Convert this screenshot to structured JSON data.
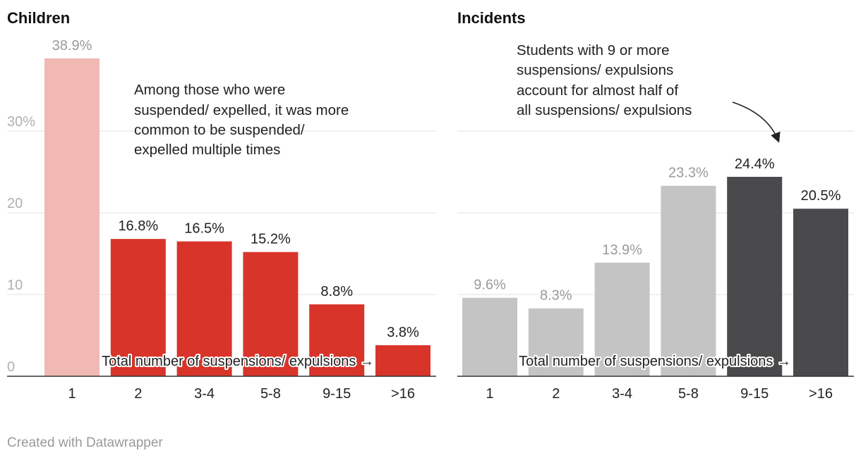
{
  "chart_data": [
    {
      "type": "bar",
      "title": "Children",
      "categories": [
        "1",
        "2",
        "3-4",
        "5-8",
        "9-15",
        ">16"
      ],
      "values": [
        38.9,
        16.8,
        16.5,
        15.2,
        8.8,
        3.8
      ],
      "value_labels": [
        "38.9%",
        "16.8%",
        "16.5%",
        "15.2%",
        "8.8%",
        "3.8%"
      ],
      "colors": [
        "#f1b9b4",
        "#d9342a",
        "#d9342a",
        "#d9342a",
        "#d9342a",
        "#d9342a"
      ],
      "label_colors": [
        "#9a9a9a",
        "#222222",
        "#222222",
        "#222222",
        "#222222",
        "#222222"
      ],
      "ylim": [
        0,
        40
      ],
      "yticks": [
        0,
        10,
        20,
        30
      ],
      "ytick_labels": [
        "0",
        "10",
        "20",
        "30%"
      ],
      "grid": true,
      "xlabel": "Total number of suspensions/ expulsions →",
      "annotation": [
        "Among those who were",
        "suspended/ expelled, it was more",
        "common to be suspended/",
        "expelled multiple times"
      ]
    },
    {
      "type": "bar",
      "title": "Incidents",
      "categories": [
        "1",
        "2",
        "3-4",
        "5-8",
        "9-15",
        ">16"
      ],
      "values": [
        9.6,
        8.3,
        13.9,
        23.3,
        24.4,
        20.5
      ],
      "value_labels": [
        "9.6%",
        "8.3%",
        "13.9%",
        "23.3%",
        "24.4%",
        "20.5%"
      ],
      "colors": [
        "#c4c4c4",
        "#c4c4c4",
        "#c4c4c4",
        "#c4c4c4",
        "#4a4a4c",
        "#4a4a4c"
      ],
      "label_colors": [
        "#9a9a9a",
        "#9a9a9a",
        "#9a9a9a",
        "#9a9a9a",
        "#222222",
        "#222222"
      ],
      "ylim": [
        0,
        40
      ],
      "yticks": [
        0,
        10,
        20,
        30
      ],
      "grid": true,
      "xlabel": "Total number of suspensions/ expulsions →",
      "annotation": [
        "Students with 9 or more",
        "suspensions/ expulsions",
        "account for almost half of",
        "all suspensions/ expulsions"
      ]
    }
  ],
  "footer": {
    "credit": "Created with Datawrapper"
  }
}
